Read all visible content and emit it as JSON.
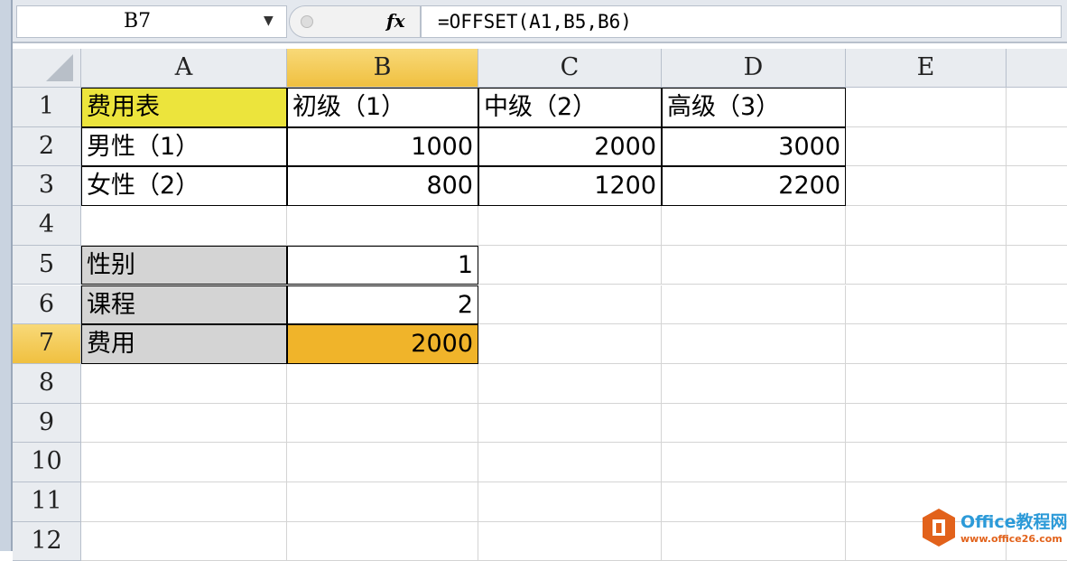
{
  "formula_bar": {
    "name_box": "B7",
    "formula": "=OFFSET(A1,B5,B6)",
    "fx_label": "fx"
  },
  "columns": [
    "A",
    "B",
    "C",
    "D",
    "E"
  ],
  "selected_column": "B",
  "selected_row": "7",
  "rows": [
    {
      "n": "1",
      "cells": [
        "费用表",
        "初级（1）",
        "中级（2）",
        "高级（3）",
        ""
      ]
    },
    {
      "n": "2",
      "cells": [
        "男性（1）",
        "1000",
        "2000",
        "3000",
        ""
      ]
    },
    {
      "n": "3",
      "cells": [
        "女性（2）",
        "800",
        "1200",
        "2200",
        ""
      ]
    },
    {
      "n": "4",
      "cells": [
        "",
        "",
        "",
        "",
        ""
      ]
    },
    {
      "n": "5",
      "cells": [
        "性别",
        "1",
        "",
        "",
        ""
      ]
    },
    {
      "n": "6",
      "cells": [
        "课程",
        "2",
        "",
        "",
        ""
      ]
    },
    {
      "n": "7",
      "cells": [
        "费用",
        "2000",
        "",
        "",
        ""
      ]
    },
    {
      "n": "8",
      "cells": [
        "",
        "",
        "",
        "",
        ""
      ]
    },
    {
      "n": "9",
      "cells": [
        "",
        "",
        "",
        "",
        ""
      ]
    },
    {
      "n": "10",
      "cells": [
        "",
        "",
        "",
        "",
        ""
      ]
    },
    {
      "n": "11",
      "cells": [
        "",
        "",
        "",
        "",
        ""
      ]
    },
    {
      "n": "12",
      "cells": [
        "",
        "",
        "",
        "",
        ""
      ]
    }
  ],
  "colors": {
    "title_fill": "#ece43c",
    "label_fill": "#d4d4d4",
    "active_fill": "#f0b42a",
    "header_selected": "#f4cc5c"
  },
  "watermark": {
    "title": "Office教程网",
    "url": "www.office26.com"
  }
}
